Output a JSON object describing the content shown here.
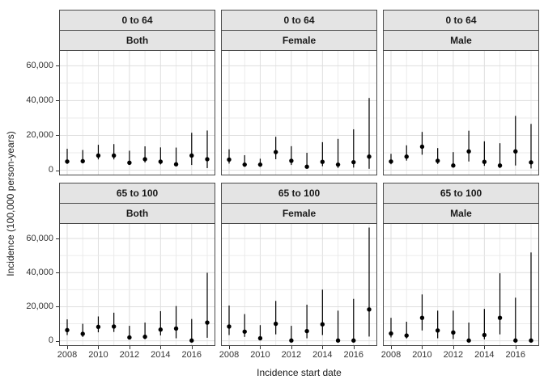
{
  "chart_data": {
    "type": "scatter",
    "style": "pointrange",
    "title": "",
    "xlabel": "Incidence start date",
    "ylabel": "Incidence (100,000 person-years)",
    "x": [
      2008,
      2009,
      2010,
      2011,
      2012,
      2013,
      2014,
      2015,
      2016,
      2017
    ],
    "x_ticks": [
      2008,
      2010,
      2012,
      2014,
      2016
    ],
    "y_ticks": [
      0,
      20000,
      40000,
      60000
    ],
    "y_tick_labels": [
      "0",
      "20,000",
      "40,000",
      "60,000"
    ],
    "y_minor": [
      10000,
      30000,
      50000
    ],
    "ylim": [
      -3000,
      69000
    ],
    "grid": "major+minor",
    "legend": "none",
    "facet_row_labels": [
      "0 to 64",
      "65 to 100"
    ],
    "facet_col_labels": [
      "Both",
      "Female",
      "Male"
    ],
    "colors": {
      "strip_fill": "#e4e4e4",
      "strip_border": "#4a4a4a",
      "panel_border": "#4a4a4a",
      "grid_major": "#dedede",
      "grid_minor": "#ebebeb",
      "point": "#000000",
      "axis_text": "#333333"
    },
    "facets": [
      {
        "row_label": "0 to 64",
        "col_label": "Both",
        "points": [
          [
            2008,
            5000,
            3600,
            12300
          ],
          [
            2009,
            5200,
            3900,
            11600
          ],
          [
            2010,
            8400,
            6200,
            14600
          ],
          [
            2011,
            8400,
            6200,
            15000
          ],
          [
            2012,
            4300,
            3000,
            11200
          ],
          [
            2013,
            6300,
            4400,
            13700
          ],
          [
            2014,
            4900,
            3300,
            13100
          ],
          [
            2015,
            3400,
            2200,
            13000
          ],
          [
            2016,
            8400,
            3000,
            21500
          ],
          [
            2017,
            6300,
            1200,
            22800
          ]
        ]
      },
      {
        "row_label": "0 to 64",
        "col_label": "Female",
        "points": [
          [
            2008,
            6100,
            3800,
            12000
          ],
          [
            2009,
            3200,
            2000,
            8600
          ],
          [
            2010,
            3200,
            2000,
            6600
          ],
          [
            2011,
            10400,
            6300,
            19200
          ],
          [
            2012,
            5400,
            3000,
            13800
          ],
          [
            2013,
            2000,
            900,
            10000
          ],
          [
            2014,
            4800,
            2300,
            16100
          ],
          [
            2015,
            3200,
            1300,
            18000
          ],
          [
            2016,
            4600,
            1500,
            23500
          ],
          [
            2017,
            7800,
            800,
            41500
          ]
        ]
      },
      {
        "row_label": "0 to 64",
        "col_label": "Male",
        "points": [
          [
            2008,
            5000,
            3400,
            9400
          ],
          [
            2009,
            7800,
            5500,
            14300
          ],
          [
            2010,
            13500,
            8900,
            22000
          ],
          [
            2011,
            5400,
            3600,
            12700
          ],
          [
            2012,
            2700,
            1500,
            10400
          ],
          [
            2013,
            10800,
            5000,
            22700
          ],
          [
            2014,
            4800,
            2500,
            16600
          ],
          [
            2015,
            2700,
            1200,
            15500
          ],
          [
            2016,
            10800,
            2700,
            31200
          ],
          [
            2017,
            4500,
            1000,
            26600
          ]
        ]
      },
      {
        "row_label": "65 to 100",
        "col_label": "Both",
        "points": [
          [
            2008,
            6300,
            3400,
            12600
          ],
          [
            2009,
            4100,
            2300,
            10000
          ],
          [
            2010,
            8200,
            5000,
            14300
          ],
          [
            2011,
            8400,
            5200,
            16500
          ],
          [
            2012,
            2000,
            800,
            8800
          ],
          [
            2013,
            2400,
            1000,
            10700
          ],
          [
            2014,
            6600,
            3200,
            17400
          ],
          [
            2015,
            7200,
            1500,
            20400
          ],
          [
            2016,
            200,
            0,
            12800
          ],
          [
            2017,
            10700,
            1800,
            39900
          ]
        ]
      },
      {
        "row_label": "65 to 100",
        "col_label": "Female",
        "points": [
          [
            2008,
            8400,
            3400,
            20700
          ],
          [
            2009,
            5400,
            2300,
            15700
          ],
          [
            2010,
            1500,
            600,
            9200
          ],
          [
            2011,
            10000,
            3800,
            23400
          ],
          [
            2012,
            200,
            0,
            8800
          ],
          [
            2013,
            5700,
            1500,
            21200
          ],
          [
            2014,
            9700,
            3400,
            30000
          ],
          [
            2015,
            200,
            0,
            17700
          ],
          [
            2016,
            200,
            0,
            24600
          ],
          [
            2017,
            18400,
            2500,
            66400
          ]
        ]
      },
      {
        "row_label": "65 to 100",
        "col_label": "Male",
        "points": [
          [
            2008,
            4300,
            2000,
            13500
          ],
          [
            2009,
            3100,
            1400,
            11200
          ],
          [
            2010,
            13500,
            6100,
            27200
          ],
          [
            2011,
            6100,
            1500,
            17700
          ],
          [
            2012,
            4900,
            1100,
            17700
          ],
          [
            2013,
            200,
            0,
            10700
          ],
          [
            2014,
            3400,
            900,
            18700
          ],
          [
            2015,
            13500,
            3800,
            39600
          ],
          [
            2016,
            200,
            0,
            25300
          ],
          [
            2017,
            200,
            0,
            51800
          ]
        ]
      }
    ]
  }
}
